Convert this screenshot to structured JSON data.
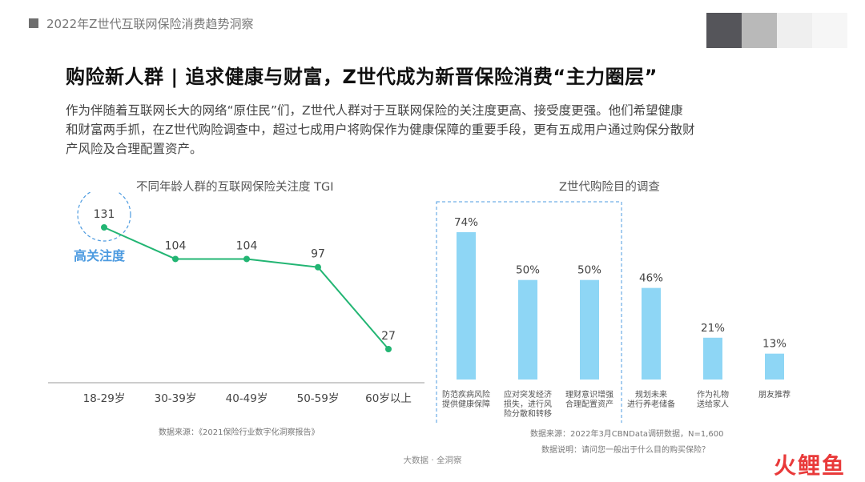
{
  "header": {
    "title": "2022年Z世代互联网保险消费趋势洞察"
  },
  "colors": {
    "line": "#22b573",
    "bar": "#8ed6f5",
    "highlight": "#4d9be0",
    "blocks": [
      "#55555a",
      "#b9b9b9",
      "#efefef",
      "#f6f6f6"
    ]
  },
  "main": {
    "title": "购险新人群 | 追求健康与财富，Z世代成为新晋保险消费“主力圈层”",
    "desc_lines": [
      "作为伴随着互联网长大的网络“原住民”们，Z世代人群对于互联网保险的关注度更高、接受度更强。他们希望健康",
      "和财富两手抓，在Z世代购险调查中，超过七成用户将购保作为健康保障的重要手段，更有五成用户通过购保分散财",
      "产风险及合理配置资产。"
    ]
  },
  "chart_data": [
    {
      "type": "line",
      "title": "不同年龄人群的互联网保险关注度 TGI",
      "categories": [
        "18-29岁",
        "30-39岁",
        "40-49岁",
        "50-59岁",
        "60岁以上"
      ],
      "values": [
        131,
        104,
        104,
        97,
        27
      ],
      "annotation": "高关注度",
      "source": "数据来源：《2021保险行业数字化洞察报告》"
    },
    {
      "type": "bar",
      "title": "Z世代购险目的调查",
      "categories": [
        [
          "防范疾病风险",
          "提供健康保障"
        ],
        [
          "应对突发经济",
          "损失，进行风",
          "险分散和转移"
        ],
        [
          "理财意识增强",
          "合理配置资产"
        ],
        [
          "规划未来",
          "进行养老储备"
        ],
        [
          "作为礼物",
          "送给家人"
        ],
        [
          "朋友推荐"
        ]
      ],
      "values": [
        74,
        50,
        50,
        46,
        21,
        13
      ],
      "value_labels": [
        "74%",
        "50%",
        "50%",
        "46%",
        "21%",
        "13%"
      ],
      "highlighted_first_n": 3,
      "source": "数据来源：2022年3月CBNData调研数据，N=1,600",
      "note": "数据说明：请问您一般出于什么目的购买保险？"
    }
  ],
  "footer": {
    "text": "大数据 · 全洞察",
    "brand": "火鲤鱼"
  }
}
